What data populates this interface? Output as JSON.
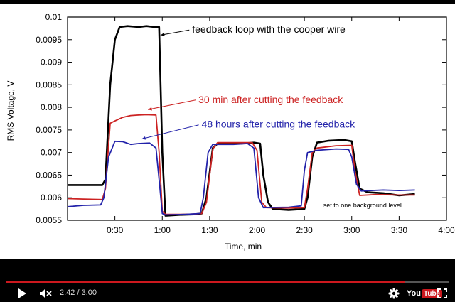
{
  "player": {
    "time_current": "2:42",
    "time_total": "3:00",
    "time_separator": " / ",
    "progress_fraction": 0.9,
    "logo_you": "You",
    "logo_tube": "Tube",
    "accent_color": "#cc181e"
  },
  "chart_data": {
    "type": "line",
    "title": "",
    "xlabel": "Time, min",
    "ylabel": "RMS Voltage, V",
    "xlim": [
      0,
      240
    ],
    "ylim": [
      0.0055,
      0.01
    ],
    "x_ticks": [
      30,
      60,
      90,
      120,
      150,
      180,
      210,
      240
    ],
    "x_tick_labels": [
      "0:30",
      "1:00",
      "1:30",
      "2:00",
      "2:30",
      "3:00",
      "3:30",
      "4:00"
    ],
    "y_ticks": [
      0.0055,
      0.006,
      0.0065,
      0.007,
      0.0075,
      0.008,
      0.0085,
      0.009,
      0.0095,
      0.01
    ],
    "y_tick_labels": [
      "0.0055",
      "0.006",
      "0.0065",
      "0.007",
      "0.0075",
      "0.008",
      "0.0085",
      "0.009",
      "0.0095",
      "0.01"
    ],
    "grid": false,
    "series": [
      {
        "color": "#000000",
        "points": [
          [
            0,
            0.00628
          ],
          [
            22,
            0.00628
          ],
          [
            24,
            0.0064
          ],
          [
            27,
            0.0085
          ],
          [
            30,
            0.0095
          ],
          [
            33,
            0.00978
          ],
          [
            38,
            0.0098
          ],
          [
            45,
            0.00978
          ],
          [
            50,
            0.0098
          ],
          [
            55,
            0.00978
          ],
          [
            58,
            0.00978
          ],
          [
            60,
            0.007
          ],
          [
            62,
            0.0056
          ],
          [
            70,
            0.00562
          ],
          [
            80,
            0.00563
          ],
          [
            85,
            0.00565
          ],
          [
            88,
            0.006
          ],
          [
            92,
            0.0071
          ],
          [
            95,
            0.0072
          ],
          [
            110,
            0.0072
          ],
          [
            118,
            0.00722
          ],
          [
            122,
            0.0072
          ],
          [
            124,
            0.0065
          ],
          [
            127,
            0.0059
          ],
          [
            130,
            0.00575
          ],
          [
            140,
            0.00573
          ],
          [
            150,
            0.00575
          ],
          [
            152,
            0.006
          ],
          [
            155,
            0.0069
          ],
          [
            158,
            0.00722
          ],
          [
            165,
            0.00726
          ],
          [
            175,
            0.00728
          ],
          [
            180,
            0.00725
          ],
          [
            182,
            0.0068
          ],
          [
            185,
            0.0062
          ],
          [
            190,
            0.00612
          ],
          [
            200,
            0.0061
          ],
          [
            210,
            0.00605
          ],
          [
            220,
            0.00608
          ]
        ]
      },
      {
        "color": "#cc2222",
        "points": [
          [
            0,
            0.00598
          ],
          [
            10,
            0.00597
          ],
          [
            22,
            0.00596
          ],
          [
            24,
            0.0062
          ],
          [
            27,
            0.00765
          ],
          [
            30,
            0.0077
          ],
          [
            35,
            0.00778
          ],
          [
            40,
            0.00782
          ],
          [
            45,
            0.00783
          ],
          [
            50,
            0.00784
          ],
          [
            56,
            0.00783
          ],
          [
            58,
            0.007
          ],
          [
            60,
            0.0057
          ],
          [
            62,
            0.00563
          ],
          [
            75,
            0.00563
          ],
          [
            85,
            0.00565
          ],
          [
            88,
            0.0059
          ],
          [
            92,
            0.00708
          ],
          [
            95,
            0.00722
          ],
          [
            110,
            0.00722
          ],
          [
            117,
            0.00722
          ],
          [
            120,
            0.00705
          ],
          [
            123,
            0.0059
          ],
          [
            126,
            0.00578
          ],
          [
            140,
            0.00577
          ],
          [
            150,
            0.00578
          ],
          [
            152,
            0.0062
          ],
          [
            155,
            0.007
          ],
          [
            158,
            0.0071
          ],
          [
            170,
            0.00715
          ],
          [
            180,
            0.00716
          ],
          [
            182,
            0.0066
          ],
          [
            185,
            0.00605
          ],
          [
            195,
            0.00607
          ],
          [
            210,
            0.00606
          ],
          [
            220,
            0.00606
          ]
        ]
      },
      {
        "color": "#2222aa",
        "points": [
          [
            0,
            0.0058
          ],
          [
            10,
            0.00583
          ],
          [
            21,
            0.00584
          ],
          [
            23,
            0.006
          ],
          [
            26,
            0.0069
          ],
          [
            30,
            0.00725
          ],
          [
            35,
            0.00724
          ],
          [
            40,
            0.00718
          ],
          [
            45,
            0.0072
          ],
          [
            52,
            0.00721
          ],
          [
            56,
            0.0071
          ],
          [
            58,
            0.0064
          ],
          [
            60,
            0.00565
          ],
          [
            62,
            0.00562
          ],
          [
            75,
            0.00563
          ],
          [
            84,
            0.00565
          ],
          [
            86,
            0.006
          ],
          [
            89,
            0.007
          ],
          [
            92,
            0.00718
          ],
          [
            105,
            0.00718
          ],
          [
            114,
            0.0072
          ],
          [
            118,
            0.0071
          ],
          [
            121,
            0.006
          ],
          [
            124,
            0.00578
          ],
          [
            140,
            0.00579
          ],
          [
            148,
            0.00582
          ],
          [
            150,
            0.0066
          ],
          [
            152,
            0.007
          ],
          [
            158,
            0.00705
          ],
          [
            170,
            0.00708
          ],
          [
            178,
            0.00707
          ],
          [
            180,
            0.0069
          ],
          [
            183,
            0.0063
          ],
          [
            186,
            0.00615
          ],
          [
            200,
            0.00617
          ],
          [
            210,
            0.00616
          ],
          [
            220,
            0.00617
          ]
        ]
      }
    ],
    "annotations": [
      {
        "text": "feedback loop with the cooper wire",
        "color": "#000000",
        "at": [
          60,
          0.00965
        ],
        "target": [
          58,
          0.0096
        ]
      },
      {
        "text": "30 min after cutting the feedback",
        "color": "#cc2222",
        "at": [
          64,
          0.0081
        ],
        "target": [
          50,
          0.00795
        ]
      },
      {
        "text": "48 hours after cutting the feedback",
        "color": "#2222aa",
        "at": [
          66,
          0.00755
        ],
        "target": [
          46,
          0.0073
        ]
      },
      {
        "text": "set to one background level",
        "color": "#000000",
        "at": [
          162,
          0.00578
        ],
        "target": null
      }
    ]
  }
}
